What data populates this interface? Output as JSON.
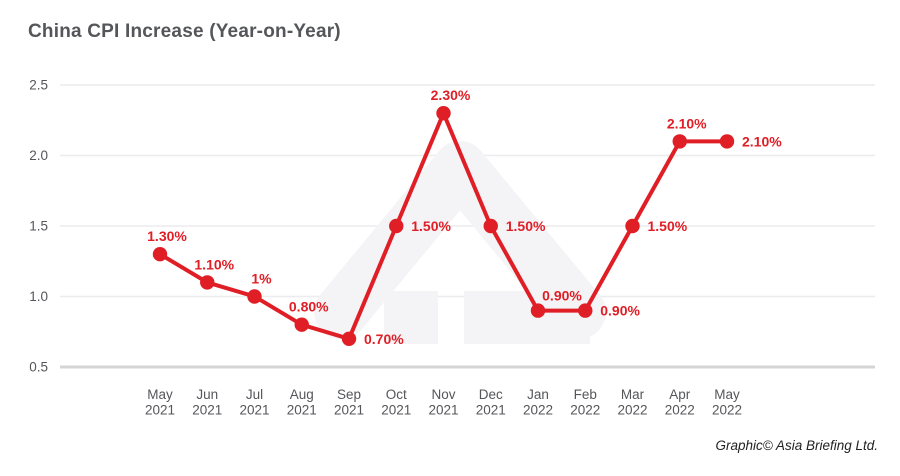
{
  "page": {
    "title": "China CPI Increase (Year-on-Year)"
  },
  "footer": {
    "credit": "Graphic© Asia Briefing Ltd."
  },
  "colors": {
    "accent_red": "#e01e26",
    "text_gray": "#55565a",
    "gridline": "#ececee",
    "axis_line": "#d5d5d7",
    "watermark": "#f4f4f6",
    "credit_text": "#222222"
  },
  "chart_data": {
    "type": "line",
    "title": "China CPI Increase (Year-on-Year)",
    "xlabel": "",
    "ylabel": "",
    "ylim": [
      0.5,
      2.5
    ],
    "yticks": [
      "2.5",
      "2.0",
      "1.5",
      "1.0",
      "0.5"
    ],
    "ytick_values": [
      2.5,
      2.0,
      1.5,
      1.0,
      0.5
    ],
    "grid": "horizontal",
    "legend": "none",
    "categories": [
      "May 2021",
      "Jun 2021",
      "Jul 2021",
      "Aug 2021",
      "Sep 2021",
      "Oct 2021",
      "Nov 2021",
      "Dec 2021",
      "Jan 2022",
      "Feb 2022",
      "Mar 2022",
      "Apr 2022",
      "May 2022"
    ],
    "series": [
      {
        "name": "China CPI Increase (Year-on-Year)",
        "values": [
          1.3,
          1.1,
          1.0,
          0.8,
          0.7,
          1.5,
          2.3,
          1.5,
          0.9,
          0.9,
          1.5,
          2.1,
          2.1
        ],
        "point_labels": [
          "1.30%",
          "1.10%",
          "1%",
          "0.80%",
          "0.70%",
          "1.50%",
          "2.30%",
          "1.50%",
          "0.90%",
          "0.90%",
          "1.50%",
          "2.10%",
          "2.10%"
        ],
        "label_side": [
          "above",
          "above",
          "above",
          "above",
          "right",
          "right",
          "above",
          "right",
          "above-right",
          "right",
          "right",
          "above",
          "right"
        ]
      }
    ]
  }
}
